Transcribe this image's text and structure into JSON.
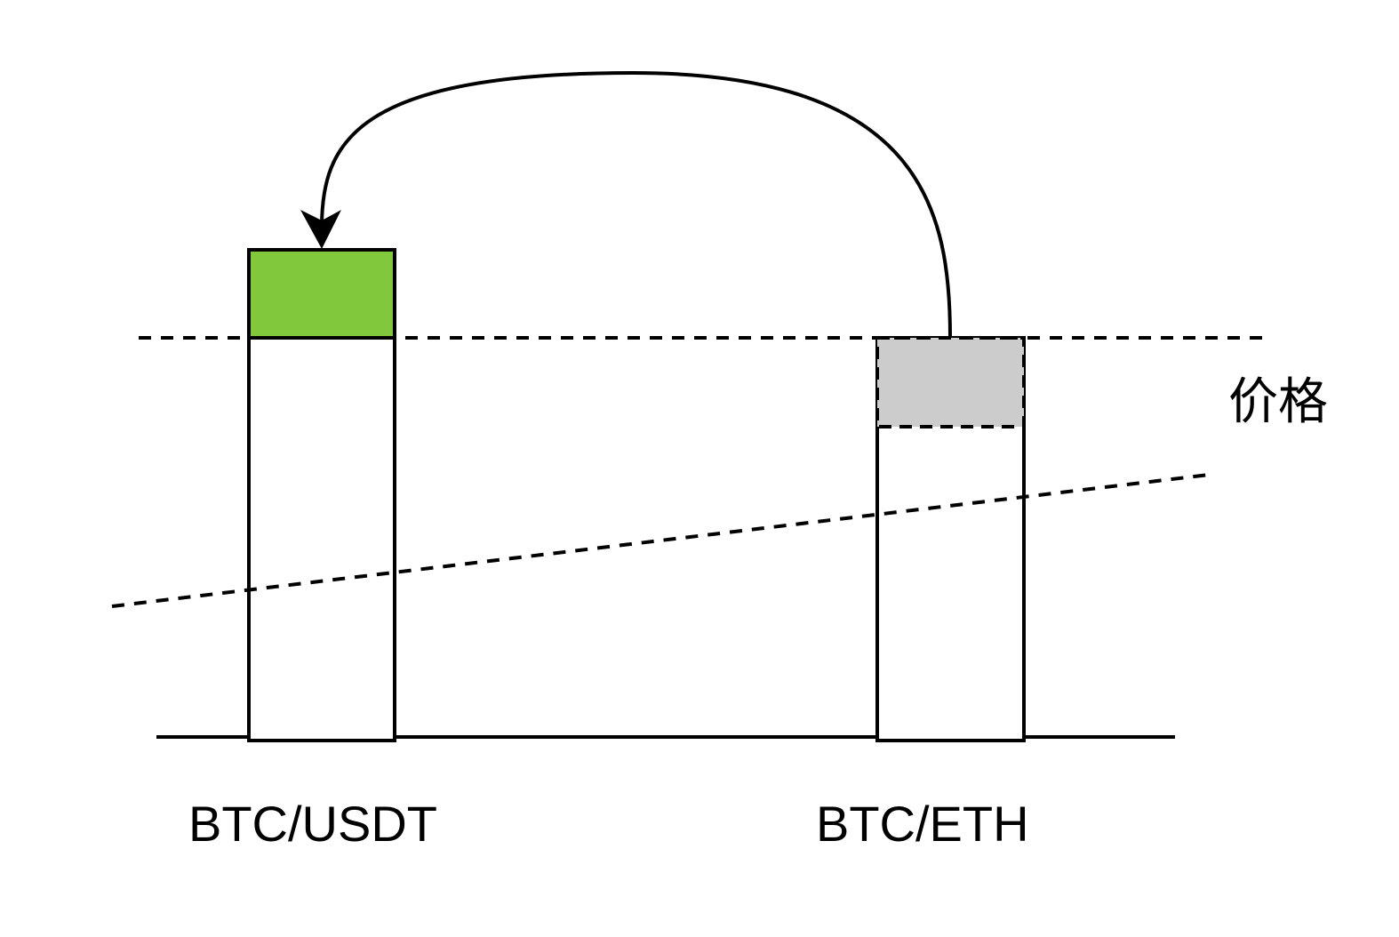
{
  "diagram": {
    "axis_label": "价格",
    "pairs": [
      {
        "id": "btc-usdt",
        "label": "BTC/USDT",
        "highlight": "filled",
        "highlight_color": "#82c83c"
      },
      {
        "id": "btc-eth",
        "label": "BTC/ETH",
        "highlight": "dashed",
        "highlight_color": "#cccccc"
      }
    ],
    "arrow": {
      "from": "btc-eth",
      "to": "btc-usdt"
    },
    "colors": {
      "stroke": "#000000",
      "background": "#ffffff"
    }
  }
}
